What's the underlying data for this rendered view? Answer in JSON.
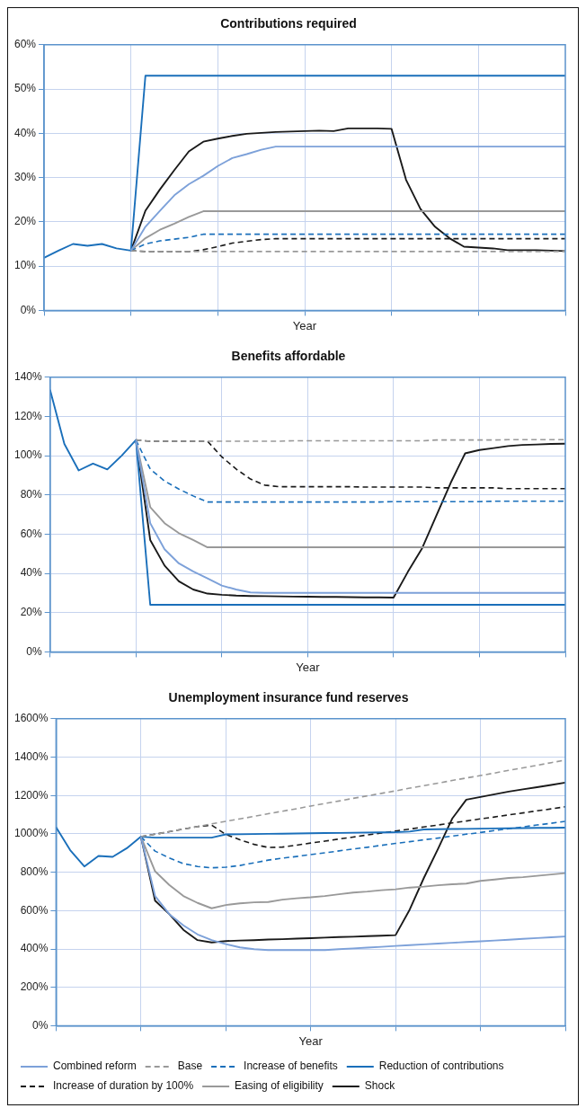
{
  "chart_data": [
    {
      "type": "line",
      "title": "Contributions required",
      "xlabel": "Year",
      "categories": [
        null,
        null,
        null,
        null,
        null,
        null,
        null,
        null,
        null,
        null,
        null,
        null,
        null,
        null,
        null,
        null,
        null,
        null,
        null,
        null,
        null,
        null,
        null,
        null,
        null,
        null,
        null,
        null,
        null,
        null,
        null,
        null,
        null,
        null,
        null,
        null,
        null
      ],
      "ylim": [
        0,
        60
      ],
      "yticks": [
        {
          "value": 0,
          "label": "0%"
        },
        {
          "value": 10,
          "label": "10%"
        },
        {
          "value": 20,
          "label": "20%"
        },
        {
          "value": 30,
          "label": "30%"
        },
        {
          "value": 40,
          "label": "40%"
        },
        {
          "value": 50,
          "label": "50%"
        },
        {
          "value": 60,
          "label": "60%"
        }
      ],
      "tick_labels": "y",
      "grid": true,
      "legend": false,
      "marker": "none",
      "series": [
        {
          "color": "#7da1d9",
          "values": [
            null,
            null,
            null,
            null,
            null,
            null,
            13.5,
            18.9,
            22.5,
            26.0,
            28.5,
            30.4,
            32.6,
            34.4,
            35.3,
            36.3,
            37.0,
            37.0,
            37.0,
            37.0,
            37.0,
            37.0,
            37.0,
            37.0,
            37.0,
            37.0,
            37.0,
            37.0,
            37.0,
            37.0,
            37.0,
            37.0,
            37.0,
            37.0,
            37.0,
            37.0,
            37.0
          ]
        },
        {
          "color": "#999999",
          "line_style": "dashed",
          "values": [
            null,
            null,
            null,
            null,
            null,
            null,
            13.5,
            13.3,
            13.3,
            13.3,
            13.3,
            13.3,
            13.3,
            13.3,
            13.3,
            13.3,
            13.3,
            13.3,
            13.3,
            13.3,
            13.3,
            13.3,
            13.3,
            13.3,
            13.3,
            13.3,
            13.3,
            13.3,
            13.3,
            13.3,
            13.3,
            13.3,
            13.3,
            13.3,
            13.3,
            13.3,
            13.3
          ]
        },
        {
          "color": "#1a6fba",
          "line_style": "dashed",
          "values": [
            null,
            null,
            null,
            null,
            null,
            null,
            13.5,
            15.0,
            15.7,
            16.1,
            16.5,
            17.2,
            17.2,
            17.2,
            17.2,
            17.2,
            17.2,
            17.2,
            17.2,
            17.2,
            17.2,
            17.2,
            17.2,
            17.2,
            17.2,
            17.2,
            17.2,
            17.2,
            17.2,
            17.2,
            17.2,
            17.2,
            17.2,
            17.2,
            17.2,
            17.2,
            17.2
          ]
        },
        {
          "color": "#1a6fba",
          "values": [
            11.9,
            13.5,
            15.0,
            14.6,
            15.0,
            14.0,
            13.5,
            53,
            53,
            53,
            53,
            53,
            53,
            53,
            53,
            53,
            53,
            53,
            53,
            53,
            53,
            53,
            53,
            53,
            53,
            53,
            53,
            53,
            53,
            53,
            53,
            53,
            53,
            53,
            53,
            53,
            53
          ]
        },
        {
          "color": "#1a1a1a",
          "line_style": "dashed",
          "values": [
            null,
            null,
            null,
            null,
            null,
            null,
            13.5,
            13.3,
            13.3,
            13.3,
            13.3,
            13.7,
            14.4,
            15.2,
            15.6,
            16.0,
            16.2,
            16.2,
            16.2,
            16.2,
            16.2,
            16.2,
            16.2,
            16.2,
            16.2,
            16.2,
            16.2,
            16.2,
            16.2,
            16.2,
            16.2,
            16.2,
            16.2,
            16.2,
            16.2,
            16.2,
            16.2
          ]
        },
        {
          "color": "#999999",
          "values": [
            null,
            null,
            null,
            null,
            null,
            null,
            13.5,
            16.3,
            18.2,
            19.6,
            21.1,
            22.4,
            22.4,
            22.4,
            22.4,
            22.4,
            22.4,
            22.4,
            22.4,
            22.4,
            22.4,
            22.4,
            22.4,
            22.4,
            22.4,
            22.4,
            22.4,
            22.4,
            22.4,
            22.4,
            22.4,
            22.4,
            22.4,
            22.4,
            22.4,
            22.4,
            22.4
          ]
        },
        {
          "color": "#1a1a1a",
          "values": [
            null,
            null,
            null,
            null,
            null,
            null,
            13.5,
            22.5,
            27.3,
            31.7,
            35.9,
            38.1,
            38.8,
            39.4,
            39.9,
            40.1,
            40.3,
            40.4,
            40.5,
            40.6,
            40.5,
            41.1,
            41.1,
            41.1,
            41.0,
            29.5,
            22.9,
            18.9,
            16.3,
            14.4,
            14.2,
            14.0,
            13.6,
            13.6,
            13.6,
            13.5,
            13.4
          ]
        }
      ]
    },
    {
      "type": "line",
      "title": "Benefits affordable",
      "xlabel": "Year",
      "categories": [
        null,
        null,
        null,
        null,
        null,
        null,
        null,
        null,
        null,
        null,
        null,
        null,
        null,
        null,
        null,
        null,
        null,
        null,
        null,
        null,
        null,
        null,
        null,
        null,
        null,
        null,
        null,
        null,
        null,
        null,
        null,
        null,
        null,
        null,
        null,
        null,
        null
      ],
      "ylim": [
        0,
        140
      ],
      "yticks": [
        {
          "value": 0,
          "label": "0%"
        },
        {
          "value": 20,
          "label": "20%"
        },
        {
          "value": 40,
          "label": "40%"
        },
        {
          "value": 60,
          "label": "60%"
        },
        {
          "value": 80,
          "label": "80%"
        },
        {
          "value": 100,
          "label": "100%"
        },
        {
          "value": 120,
          "label": "120%"
        },
        {
          "value": 140,
          "label": "140%"
        }
      ],
      "tick_labels": "y",
      "grid": true,
      "legend": false,
      "marker": "none",
      "series": [
        {
          "color": "#7da1d9",
          "values": [
            null,
            null,
            null,
            null,
            null,
            null,
            108,
            65.6,
            52.3,
            45.1,
            41.0,
            37.5,
            33.8,
            31.8,
            30.3,
            30.1,
            30.1,
            30.1,
            30.1,
            30.1,
            30.1,
            30.1,
            30.1,
            30.1,
            30.1,
            30.1,
            30.1,
            30.1,
            30.1,
            30.1,
            30.1,
            30.1,
            30.1,
            30.1,
            30.1,
            30.1,
            30.1
          ]
        },
        {
          "color": "#999999",
          "line_style": "dashed",
          "values": [
            null,
            null,
            null,
            null,
            null,
            null,
            108,
            107.4,
            107.4,
            107.4,
            107.4,
            107.4,
            107.4,
            107.4,
            107.4,
            107.4,
            107.4,
            107.6,
            107.6,
            107.6,
            107.6,
            107.6,
            107.6,
            107.6,
            107.6,
            107.6,
            107.6,
            108.0,
            108.0,
            108.0,
            108.0,
            108.0,
            108.2,
            108.2,
            108.2,
            108.2,
            108.2
          ]
        },
        {
          "color": "#1a6fba",
          "line_style": "dashed",
          "values": [
            null,
            null,
            null,
            null,
            null,
            null,
            108,
            93.2,
            87.1,
            83.0,
            79.5,
            76.4,
            76.4,
            76.4,
            76.4,
            76.4,
            76.4,
            76.4,
            76.4,
            76.4,
            76.4,
            76.4,
            76.4,
            76.4,
            76.6,
            76.6,
            76.6,
            76.6,
            76.6,
            76.6,
            76.6,
            76.8,
            76.8,
            76.8,
            76.8,
            76.8,
            76.8
          ]
        },
        {
          "color": "#1a6fba",
          "values": [
            133.6,
            106,
            92.5,
            96,
            93,
            100,
            108,
            24.0,
            24.0,
            24.0,
            24.0,
            24.0,
            24.0,
            24.0,
            24.0,
            24.0,
            24.0,
            24.0,
            24.0,
            24.0,
            24.0,
            24.0,
            24.0,
            24.0,
            24.0,
            24.0,
            24.0,
            24.0,
            24.0,
            24.0,
            24.0,
            24.0,
            24.0,
            24.0,
            24.0,
            24.0,
            24.0
          ]
        },
        {
          "color": "#1a1a1a",
          "line_style": "dashed",
          "values": [
            null,
            null,
            null,
            null,
            null,
            null,
            108,
            107.4,
            107.4,
            107.4,
            107.4,
            107.4,
            99.4,
            93.2,
            88.1,
            85.0,
            84.2,
            84.2,
            84.2,
            84.2,
            84.2,
            84.2,
            84.0,
            84.0,
            84.0,
            84.0,
            84.0,
            83.6,
            83.6,
            83.6,
            83.6,
            83.6,
            83.2,
            83.2,
            83.2,
            83.2,
            83.2
          ]
        },
        {
          "color": "#999999",
          "values": [
            null,
            null,
            null,
            null,
            null,
            null,
            108,
            73.8,
            65.6,
            60.5,
            57.0,
            53.3,
            53.3,
            53.3,
            53.3,
            53.3,
            53.3,
            53.3,
            53.3,
            53.3,
            53.3,
            53.3,
            53.3,
            53.3,
            53.3,
            53.3,
            53.3,
            53.3,
            53.3,
            53.3,
            53.3,
            53.3,
            53.3,
            53.3,
            53.3,
            53.3,
            53.3
          ]
        },
        {
          "color": "#1a1a1a",
          "values": [
            null,
            null,
            null,
            null,
            null,
            null,
            108,
            57,
            44,
            36,
            31.8,
            29.7,
            29.1,
            28.7,
            28.5,
            28.4,
            28.3,
            28.2,
            28.1,
            28.0,
            28.0,
            27.9,
            27.8,
            27.8,
            27.7,
            40.8,
            52.9,
            69.7,
            86.3,
            101.2,
            102.9,
            103.9,
            104.9,
            105.5,
            105.7,
            106.0,
            106.1
          ]
        }
      ]
    },
    {
      "type": "line",
      "title": "Unemployment insurance fund reserves",
      "xlabel": "Year",
      "categories": [
        null,
        null,
        null,
        null,
        null,
        null,
        null,
        null,
        null,
        null,
        null,
        null,
        null,
        null,
        null,
        null,
        null,
        null,
        null,
        null,
        null,
        null,
        null,
        null,
        null,
        null,
        null,
        null,
        null,
        null,
        null,
        null,
        null,
        null,
        null,
        null,
        null
      ],
      "ylim": [
        0,
        1600
      ],
      "yticks": [
        {
          "value": 0,
          "label": "0%"
        },
        {
          "value": 200,
          "label": "200%"
        },
        {
          "value": 400,
          "label": "400%"
        },
        {
          "value": 600,
          "label": "600%"
        },
        {
          "value": 800,
          "label": "800%"
        },
        {
          "value": 1000,
          "label": "1000%"
        },
        {
          "value": 1200,
          "label": "1200%"
        },
        {
          "value": 1400,
          "label": "1400%"
        },
        {
          "value": 1600,
          "label": "1600%"
        }
      ],
      "tick_labels": "y",
      "grid": true,
      "legend": "bottom",
      "marker": "none",
      "series": [
        {
          "name": "Combined reform",
          "color": "#7da1d9",
          "values": [
            null,
            null,
            null,
            null,
            null,
            null,
            985,
            676,
            582,
            523,
            476,
            446,
            425,
            408,
            399,
            394,
            394,
            394,
            394,
            394,
            399,
            403,
            407,
            411,
            416,
            420,
            424,
            428,
            432,
            436,
            440,
            444,
            448,
            453,
            457,
            461,
            465
          ]
        },
        {
          "name": "Base",
          "color": "#999999",
          "line_style": "dashed",
          "values": [
            null,
            null,
            null,
            null,
            null,
            null,
            985,
            998,
            1011,
            1025,
            1038,
            1052,
            1065,
            1078,
            1091,
            1105,
            1118,
            1131,
            1145,
            1158,
            1171,
            1185,
            1198,
            1211,
            1224,
            1238,
            1251,
            1264,
            1278,
            1291,
            1304,
            1317,
            1331,
            1344,
            1357,
            1371,
            1384
          ]
        },
        {
          "name": "Increase of benefits",
          "color": "#1a6fba",
          "line_style": "dashed",
          "values": [
            null,
            null,
            null,
            null,
            null,
            null,
            985,
            910,
            875,
            845,
            830,
            823,
            826,
            835,
            849,
            863,
            873,
            882,
            892,
            901,
            911,
            921,
            930,
            940,
            950,
            959,
            969,
            978,
            988,
            998,
            1007,
            1017,
            1027,
            1036,
            1046,
            1055,
            1065
          ]
        },
        {
          "name": "Reduction of contributions",
          "color": "#1a6fba",
          "values": [
            1035,
            915,
            830,
            885,
            880,
            925,
            985,
            980,
            980,
            980,
            980,
            980,
            997,
            998,
            999,
            1000,
            1001,
            1002,
            1003,
            1004,
            1005,
            1006,
            1007,
            1008,
            1009,
            1012,
            1023,
            1024,
            1025,
            1026,
            1027,
            1028,
            1029,
            1030,
            1031,
            1031,
            1032
          ]
        },
        {
          "name": "Increase of duration by 100%",
          "color": "#1a1a1a",
          "line_style": "dashed",
          "values": [
            null,
            null,
            null,
            null,
            null,
            null,
            985,
            998,
            1011,
            1025,
            1038,
            1045,
            997,
            969,
            945,
            929,
            931,
            941,
            952,
            962,
            973,
            983,
            994,
            1004,
            1015,
            1025,
            1036,
            1046,
            1057,
            1067,
            1078,
            1088,
            1099,
            1109,
            1120,
            1130,
            1141
          ]
        },
        {
          "name": "Easing of eligibility",
          "color": "#999999",
          "values": [
            null,
            null,
            null,
            null,
            null,
            null,
            985,
            805,
            734,
            676,
            640,
            612,
            629,
            638,
            643,
            645,
            657,
            664,
            669,
            676,
            685,
            694,
            699,
            706,
            711,
            720,
            725,
            732,
            737,
            741,
            755,
            762,
            770,
            774,
            781,
            788,
            795
          ]
        },
        {
          "name": "Shock",
          "color": "#1a1a1a",
          "values": [
            null,
            null,
            null,
            null,
            null,
            null,
            985,
            652,
            582,
            500,
            446,
            434,
            441,
            444,
            446,
            449,
            451,
            454,
            456,
            459,
            462,
            464,
            467,
            469,
            472,
            605,
            770,
            922,
            1079,
            1178,
            1192,
            1206,
            1220,
            1232,
            1243,
            1255,
            1267
          ]
        }
      ]
    }
  ]
}
